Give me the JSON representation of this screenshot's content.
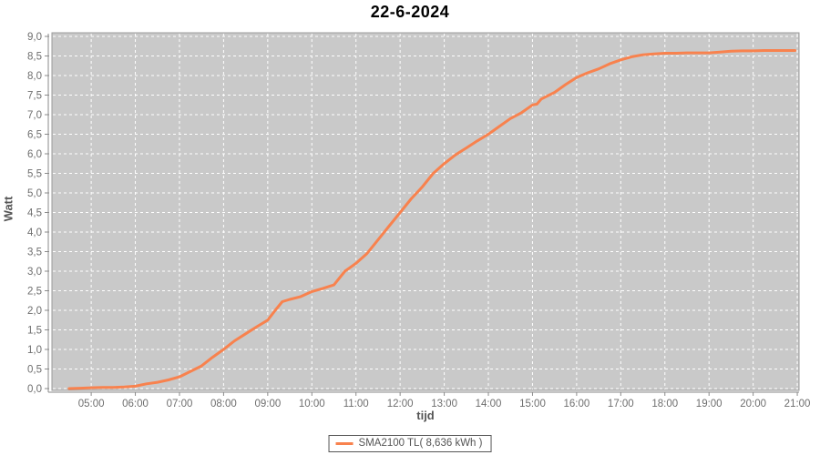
{
  "chart_data": {
    "type": "line",
    "title": "22-6-2024",
    "xlabel": "tijd",
    "ylabel": "Watt",
    "x_ticks": [
      "05:00",
      "06:00",
      "07:00",
      "08:00",
      "09:00",
      "10:00",
      "11:00",
      "12:00",
      "13:00",
      "14:00",
      "15:00",
      "16:00",
      "17:00",
      "18:00",
      "19:00",
      "20:00",
      "21:00"
    ],
    "x_tick_hours": [
      5,
      6,
      7,
      8,
      9,
      10,
      11,
      12,
      13,
      14,
      15,
      16,
      17,
      18,
      19,
      20,
      21
    ],
    "y_ticks": [
      "0,0",
      "0,5",
      "1,0",
      "1,5",
      "2,0",
      "2,5",
      "3,0",
      "3,5",
      "4,0",
      "4,5",
      "5,0",
      "5,5",
      "6,0",
      "6,5",
      "7,0",
      "7,5",
      "8,0",
      "8,5",
      "9,0"
    ],
    "y_tick_values": [
      0,
      0.5,
      1,
      1.5,
      2,
      2.5,
      3,
      3.5,
      4,
      4.5,
      5,
      5.5,
      6,
      6.5,
      7,
      7.5,
      8,
      8.5,
      9
    ],
    "xlim_hours": [
      4.11,
      21.04
    ],
    "ylim": [
      0,
      9
    ],
    "grid": "white dashed on gray",
    "legend_position": "bottom",
    "series": [
      {
        "name": "SMA2100 TL( 8,636 kWh )",
        "color": "#f8824e",
        "points": [
          [
            4.5,
            0.0
          ],
          [
            4.75,
            0.01
          ],
          [
            5.0,
            0.02
          ],
          [
            5.25,
            0.03
          ],
          [
            5.5,
            0.03
          ],
          [
            5.75,
            0.04
          ],
          [
            6.0,
            0.06
          ],
          [
            6.25,
            0.12
          ],
          [
            6.5,
            0.16
          ],
          [
            6.75,
            0.22
          ],
          [
            7.0,
            0.3
          ],
          [
            7.25,
            0.44
          ],
          [
            7.5,
            0.58
          ],
          [
            7.75,
            0.8
          ],
          [
            8.0,
            1.0
          ],
          [
            8.25,
            1.22
          ],
          [
            8.5,
            1.4
          ],
          [
            8.75,
            1.58
          ],
          [
            9.0,
            1.75
          ],
          [
            9.17,
            2.0
          ],
          [
            9.33,
            2.22
          ],
          [
            9.5,
            2.28
          ],
          [
            9.75,
            2.35
          ],
          [
            10.0,
            2.48
          ],
          [
            10.25,
            2.56
          ],
          [
            10.5,
            2.65
          ],
          [
            10.75,
            3.0
          ],
          [
            11.0,
            3.2
          ],
          [
            11.25,
            3.45
          ],
          [
            11.5,
            3.8
          ],
          [
            11.75,
            4.15
          ],
          [
            12.0,
            4.5
          ],
          [
            12.25,
            4.85
          ],
          [
            12.5,
            5.15
          ],
          [
            12.75,
            5.5
          ],
          [
            13.0,
            5.75
          ],
          [
            13.25,
            5.97
          ],
          [
            13.5,
            6.15
          ],
          [
            13.75,
            6.33
          ],
          [
            14.0,
            6.5
          ],
          [
            14.25,
            6.7
          ],
          [
            14.5,
            6.9
          ],
          [
            14.75,
            7.05
          ],
          [
            15.0,
            7.25
          ],
          [
            15.1,
            7.27
          ],
          [
            15.2,
            7.4
          ],
          [
            15.5,
            7.57
          ],
          [
            15.75,
            7.77
          ],
          [
            16.0,
            7.95
          ],
          [
            16.25,
            8.07
          ],
          [
            16.5,
            8.17
          ],
          [
            16.75,
            8.3
          ],
          [
            17.0,
            8.4
          ],
          [
            17.25,
            8.48
          ],
          [
            17.5,
            8.53
          ],
          [
            17.75,
            8.55
          ],
          [
            18.0,
            8.57
          ],
          [
            18.25,
            8.57
          ],
          [
            18.5,
            8.58
          ],
          [
            18.75,
            8.58
          ],
          [
            19.0,
            8.58
          ],
          [
            19.25,
            8.6
          ],
          [
            19.5,
            8.62
          ],
          [
            19.75,
            8.63
          ],
          [
            20.0,
            8.63
          ],
          [
            20.25,
            8.64
          ],
          [
            20.5,
            8.64
          ],
          [
            20.95,
            8.64
          ]
        ]
      }
    ],
    "colors": {
      "plot_background": "#c9c9c9",
      "gridline": "#ffffff",
      "line": "#f8824e",
      "tick_label": "#6e6e6e",
      "axis": "#8a8a8a",
      "plot_border": "#9b9b9b"
    }
  },
  "legend": {
    "label": "SMA2100 TL( 8,636 kWh )"
  },
  "titles": {
    "main": "22-6-2024",
    "x": "tijd",
    "y": "Watt"
  }
}
